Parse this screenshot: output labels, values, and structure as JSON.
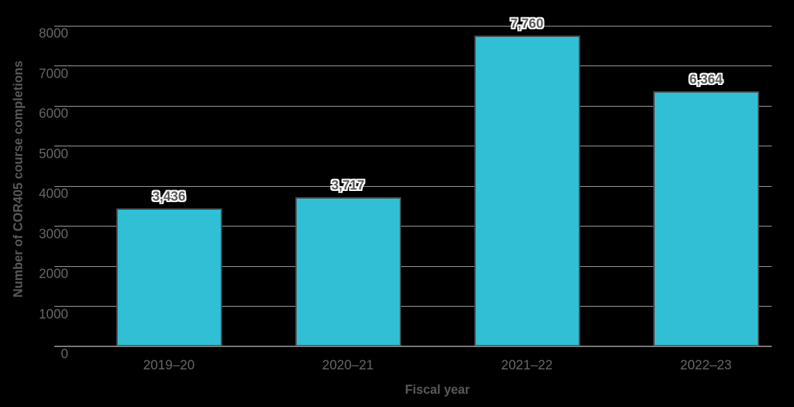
{
  "chart_data": {
    "type": "bar",
    "title": "",
    "xlabel": "Fiscal year",
    "ylabel": "Number of COR405 course completions",
    "categories": [
      "2019–20",
      "2020–21",
      "2021–22",
      "2022–23"
    ],
    "values": [
      3436,
      3717,
      7760,
      6364
    ],
    "value_labels": [
      "3,436",
      "3,717",
      "7,760",
      "6,364"
    ],
    "ylim": [
      0,
      8000
    ],
    "ytick_step": 1000,
    "ytick_labels": [
      "0",
      "1000",
      "2000",
      "3000",
      "4000",
      "5000",
      "6000",
      "7000",
      "8000"
    ],
    "grid": "horizontal",
    "legend": "none",
    "colors": {
      "background": "#000000",
      "bar_fill": "#31bfd6",
      "bar_border": "#4a4a4a",
      "gridline": "#a6a6a6",
      "axis_line": "#7f7f7f",
      "tick_text": "#666666",
      "title_text": "#595959",
      "data_label_text": "#595959",
      "data_label_halo": "#ffffff"
    }
  }
}
